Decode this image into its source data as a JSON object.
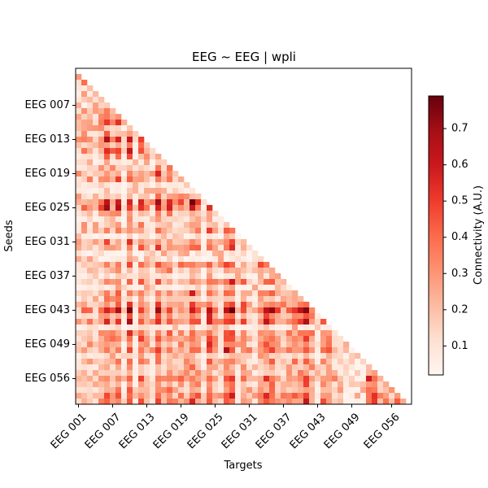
{
  "chart_data": {
    "type": "heatmap",
    "title": "EEG ~ EEG | wpli",
    "xlabel": "Targets",
    "ylabel": "Seeds",
    "x_tick_labels": [
      "EEG 001",
      "EEG 007",
      "EEG 013",
      "EEG 019",
      "EEG 025",
      "EEG 031",
      "EEG 037",
      "EEG 043",
      "EEG 049",
      "EEG 056"
    ],
    "y_tick_labels": [
      "EEG 007",
      "EEG 013",
      "EEG 019",
      "EEG 025",
      "EEG 031",
      "EEG 037",
      "EEG 043",
      "EEG 049",
      "EEG 056"
    ],
    "colorbar": {
      "label": "Connectivity (A.U.)",
      "min": 0.02,
      "max": 0.79,
      "ticks": [
        0.1,
        0.2,
        0.3,
        0.4,
        0.5,
        0.6,
        0.7
      ],
      "tick_labels": [
        "0.1",
        "0.2",
        "0.3",
        "0.4",
        "0.5",
        "0.6",
        "0.7"
      ],
      "colormap": "Reds"
    },
    "mask": "lower-triangle",
    "matrix_size": 59,
    "values_seed": 1234
  }
}
